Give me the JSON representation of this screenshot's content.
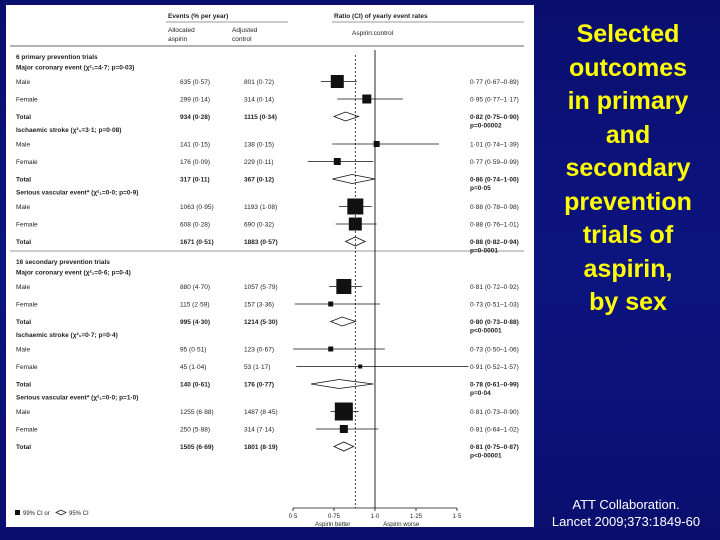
{
  "title": {
    "lines": [
      "Selected",
      "outcomes",
      "in primary",
      "and",
      "secondary",
      "prevention",
      "trials of",
      "aspirin,",
      "by sex"
    ]
  },
  "citation": {
    "line1": "ATT Collaboration.",
    "line2": "Lancet 2009;373:1849-60"
  },
  "colors": {
    "background": "#0c1480",
    "title": "#ffff00",
    "citation": "#ffffff",
    "panel": "#ffffff",
    "marker": "#111111"
  },
  "chart_data": {
    "type": "forest",
    "headers": {
      "events": "Events (% per year)",
      "allocated_aspirin": [
        "Allocated",
        "aspirin"
      ],
      "adjusted_control": [
        "Adjusted",
        "control"
      ],
      "ratio": "Ratio (CI) of yearly event rates",
      "aspirin_control": "Aspirin:control"
    },
    "axis": {
      "ticks": [
        "0·5",
        "0·75",
        "1·0",
        "1·25",
        "1·5"
      ],
      "tick_values": [
        0.5,
        0.75,
        1.0,
        1.25,
        1.5
      ],
      "xlim": [
        0.5,
        1.5
      ],
      "left_label": "Aspirin better",
      "right_label": "Aspirin worse"
    },
    "legend": {
      "ci99": "99% CI or",
      "ci95": "95% CI"
    },
    "overall_reference": 0.88,
    "rows": [
      {
        "kind": "section",
        "label": "6 primary prevention trials"
      },
      {
        "kind": "outcome",
        "label": "Major coronary event (χ²₁=4·7; p=0·03)",
        "sub": "Male",
        "asp": "635 (0·57)",
        "ctl": "801 (0·72)",
        "ratio": "0·77 (0·67–0·89)",
        "est": 0.77,
        "lo": 0.67,
        "hi": 0.89,
        "size": 13
      },
      {
        "kind": "row",
        "label": "Female",
        "asp": "299 (0·14)",
        "ctl": "314 (0·14)",
        "ratio": "0·95 (0·77–1·17)",
        "est": 0.95,
        "lo": 0.77,
        "hi": 1.17,
        "size": 9
      },
      {
        "kind": "total",
        "label": "Total",
        "asp": "934 (0·28)",
        "ctl": "1115 (0·34)",
        "ratio": "0·82 (0·75–0·90)",
        "p": "p=0·00002",
        "est": 0.82,
        "lo": 0.75,
        "hi": 0.9
      },
      {
        "kind": "outcome",
        "label": "Ischaemic stroke (χ²₁=3·1; p=0·08)",
        "sub": "Male",
        "asp": "141 (0·15)",
        "ctl": "138 (0·15)",
        "ratio": "1·01 (0·74–1·39)",
        "est": 1.01,
        "lo": 0.74,
        "hi": 1.39,
        "size": 6
      },
      {
        "kind": "row",
        "label": "Female",
        "asp": "176 (0·09)",
        "ctl": "229 (0·11)",
        "ratio": "0·77 (0·59–0·99)",
        "est": 0.77,
        "lo": 0.59,
        "hi": 0.99,
        "size": 7
      },
      {
        "kind": "total",
        "label": "Total",
        "asp": "317 (0·11)",
        "ctl": "367 (0·12)",
        "ratio": "0·86 (0·74–1·00)",
        "p": "p=0·05",
        "est": 0.86,
        "lo": 0.74,
        "hi": 1.0
      },
      {
        "kind": "outcome",
        "label": "Serious vascular event* (χ²₁=0·0; p=0·9)",
        "sub": "Male",
        "asp": "1063 (0·95)",
        "ctl": "1193 (1·08)",
        "ratio": "0·88 (0·78–0·98)",
        "est": 0.88,
        "lo": 0.78,
        "hi": 0.98,
        "size": 16
      },
      {
        "kind": "row",
        "label": "Female",
        "asp": "608 (0·28)",
        "ctl": "690 (0·32)",
        "ratio": "0·88 (0·76–1·01)",
        "est": 0.88,
        "lo": 0.76,
        "hi": 1.01,
        "size": 13
      },
      {
        "kind": "total",
        "label": "Total",
        "asp": "1671 (0·51)",
        "ctl": "1883 (0·57)",
        "ratio": "0·88 (0·82–0·94)",
        "p": "p=0·0001",
        "est": 0.88,
        "lo": 0.82,
        "hi": 0.94
      },
      {
        "kind": "section",
        "label": "16 secondary prevention trials"
      },
      {
        "kind": "outcome",
        "label": "Major coronary event (χ²₁=0·6; p=0·4)",
        "sub": "Male",
        "asp": "880 (4·70)",
        "ctl": "1057 (5·79)",
        "ratio": "0·81 (0·72–0·92)",
        "est": 0.81,
        "lo": 0.72,
        "hi": 0.92,
        "size": 15
      },
      {
        "kind": "row",
        "label": "Female",
        "asp": "115 (2·59)",
        "ctl": "157 (3·36)",
        "ratio": "0·73 (0·51–1·03)",
        "est": 0.73,
        "lo": 0.51,
        "hi": 1.03,
        "size": 5
      },
      {
        "kind": "total",
        "label": "Total",
        "asp": "995 (4·30)",
        "ctl": "1214 (5·30)",
        "ratio": "0·80 (0·73–0·88)",
        "p": "p<0·00001",
        "est": 0.8,
        "lo": 0.73,
        "hi": 0.88
      },
      {
        "kind": "outcome",
        "label": "Ischaemic stroke (χ²₁=0·7; p=0·4)",
        "sub": "Male",
        "asp": "95 (0·51)",
        "ctl": "123 (0·67)",
        "ratio": "0·73 (0·50–1·06)",
        "est": 0.73,
        "lo": 0.5,
        "hi": 1.06,
        "size": 5
      },
      {
        "kind": "row",
        "label": "Female",
        "asp": "45 (1·04)",
        "ctl": "53 (1·17)",
        "ratio": "0·91 (0·52–1·57)",
        "est": 0.91,
        "lo": 0.52,
        "hi": 1.57,
        "size": 4
      },
      {
        "kind": "total",
        "label": "Total",
        "asp": "140 (0·61)",
        "ctl": "176 (0·77)",
        "ratio": "0·78 (0·61–0·99)",
        "p": "p=0·04",
        "est": 0.78,
        "lo": 0.61,
        "hi": 0.99
      },
      {
        "kind": "outcome",
        "label": "Serious vascular event* (χ²₁=0·0; p=1·0)",
        "sub": "Male",
        "asp": "1255 (6·88)",
        "ctl": "1487 (8·45)",
        "ratio": "0·81 (0·73–0·90)",
        "est": 0.81,
        "lo": 0.73,
        "hi": 0.9,
        "size": 18
      },
      {
        "kind": "row",
        "label": "Female",
        "asp": "250 (5·88)",
        "ctl": "314 (7·14)",
        "ratio": "0·81 (0·64–1·02)",
        "est": 0.81,
        "lo": 0.64,
        "hi": 1.02,
        "size": 8
      },
      {
        "kind": "total",
        "label": "Total",
        "asp": "1505 (6·69)",
        "ctl": "1801 (8·19)",
        "ratio": "0·81 (0·75–0·87)",
        "p": "p<0·00001",
        "est": 0.81,
        "lo": 0.75,
        "hi": 0.87
      }
    ]
  }
}
